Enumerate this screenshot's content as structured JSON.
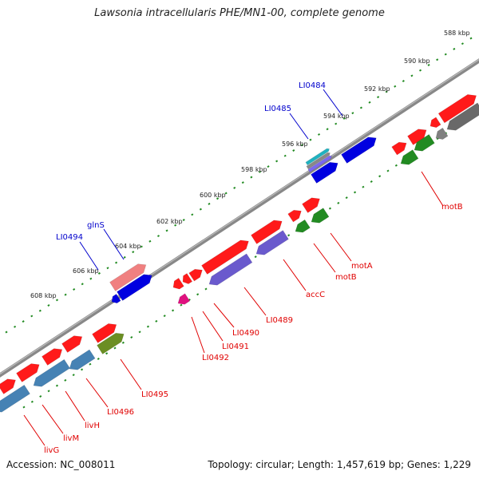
{
  "title": "Lawsonia intracellularis PHE/MN1-00, complete genome",
  "accession_text": "Accession: NC_008011",
  "summary_text": "Topology: circular; Length: 1,457,619 bp; Genes: 1,229",
  "colors": {
    "backbone": "#888888",
    "scale_ticks": "#228B22",
    "label_red": "#e00000",
    "label_blue": "#0000cc"
  },
  "scale_labels": [
    "588 kbp",
    "590 kbp",
    "592 kbp",
    "594 kbp",
    "596 kbp",
    "598 kbp",
    "600 kbp",
    "602 kbp",
    "604 kbp",
    "606 kbp",
    "608 kbp"
  ],
  "gene_labels_red": [
    "motB",
    "motA",
    "motB",
    "accC",
    "LI0489",
    "LI0490",
    "LI0491",
    "LI0492",
    "LI0495",
    "LI0496",
    "livH",
    "livM",
    "livG"
  ],
  "gene_labels_blue": [
    "LI0484",
    "LI0485",
    "glnS",
    "LI0494"
  ]
}
